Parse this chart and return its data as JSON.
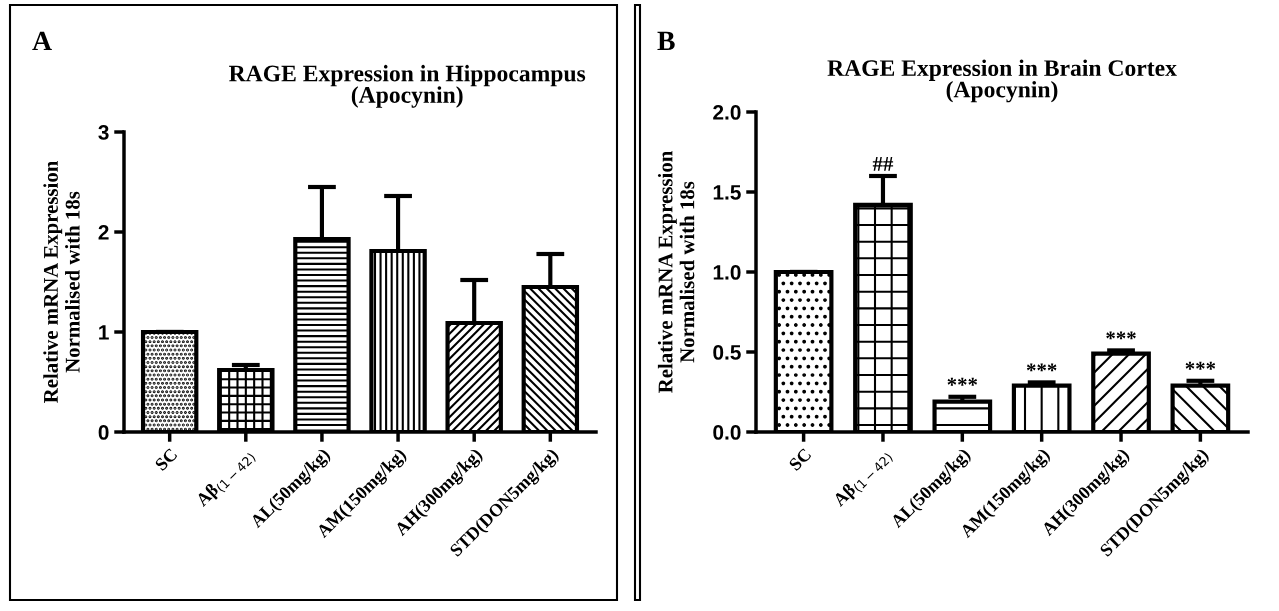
{
  "chart_data": [
    {
      "type": "bar",
      "title": "RAGE Expression in Hippocampus\n(Apocynin)",
      "ylabel": "Relative mRNA Expression\nNormalised with 18s",
      "categories": [
        "SC",
        "Aβ$_{(1−42)}$",
        "AL(50mg/kg)",
        "AM(150mg/kg)",
        "AH(300mg/kg)",
        "STD(DON5mg/kg)"
      ],
      "values": [
        1.0,
        0.62,
        1.93,
        1.81,
        1.09,
        1.45
      ],
      "errors": [
        null,
        0.05,
        0.52,
        0.55,
        0.43,
        0.33
      ],
      "color": "#000000",
      "ylim": [
        0,
        3
      ],
      "yticks": [
        0,
        1,
        2,
        3
      ],
      "grid": false,
      "annotations": [
        "A"
      ]
    },
    {
      "type": "bar",
      "title": "RAGE Expression in Brain Cortex\n(Apocynin)",
      "ylabel": "Relative mRNA Expression\nNormalised with 18s",
      "categories": [
        "SC",
        "Aβ$_{(1−42)}$",
        "AL(50mg/kg)",
        "AM(150mg/kg)",
        "AH(300mg/kg)",
        "STD(DON5mg/kg)"
      ],
      "values": [
        1.0,
        1.42,
        0.19,
        0.29,
        0.49,
        0.29
      ],
      "errors": [
        null,
        0.18,
        0.03,
        0.02,
        0.02,
        0.03
      ],
      "color": "#000000",
      "ylim": [
        0,
        2
      ],
      "yticks": [
        {
          "value": 0,
          "label": "0.0"
        },
        {
          "value": 0.5,
          "label": "0.5"
        },
        {
          "value": 1,
          "label": "1.0"
        },
        {
          "value": 1.5,
          "label": "1.5"
        },
        {
          "value": 2,
          "label": "2.0"
        }
      ],
      "grid": false,
      "annotations": [
        "B",
        "##",
        "***",
        "***",
        "***",
        "***"
      ]
    }
  ]
}
